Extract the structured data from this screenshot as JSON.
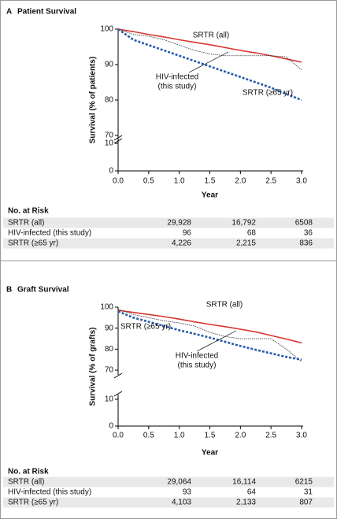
{
  "chart_data": [
    {
      "type": "line",
      "panel": "A",
      "title": "Patient Survival",
      "ylabel": "Survival (% of patients)",
      "xlabel": "Year",
      "x": [
        0,
        0.25,
        0.5,
        0.75,
        1,
        1.25,
        1.5,
        1.75,
        2,
        2.25,
        2.5,
        2.75,
        3
      ],
      "xlim": [
        0,
        3
      ],
      "xticks": [
        {
          "value": 0,
          "label": "0.0"
        },
        {
          "value": 0.5,
          "label": "0.5"
        },
        {
          "value": 1,
          "label": "1.0"
        },
        {
          "value": 1.5,
          "label": "1.5"
        },
        {
          "value": 2,
          "label": "2.0"
        },
        {
          "value": 2.5,
          "label": "2.5"
        },
        {
          "value": 3,
          "label": "3.0"
        }
      ],
      "ylim": [
        0,
        100
      ],
      "axis_break": [
        10,
        70
      ],
      "yticks": [
        0,
        10,
        70,
        80,
        90,
        100
      ],
      "risk_title": "No. at Risk",
      "series": [
        {
          "name": "SRTR (all)",
          "label_lines": [
            "SRTR (all)"
          ],
          "color": "#d8352f",
          "line_style": "solid",
          "values": [
            100,
            99.3,
            98.5,
            97.8,
            97.0,
            96.3,
            95.6,
            94.8,
            94.0,
            93.3,
            92.5,
            91.6,
            90.7
          ],
          "at_risk": [
            29928,
            16792,
            6508
          ],
          "at_risk_labels": [
            "29,928",
            "16,792",
            "6508"
          ]
        },
        {
          "name": "HIV-infected (this study)",
          "label_lines": [
            "HIV-infected",
            "(this study)"
          ],
          "color": "#333333",
          "line_style": "thin",
          "values": [
            100,
            98.5,
            98,
            97,
            95.5,
            94,
            93,
            92.5,
            92.5,
            92.5,
            92.5,
            92.2,
            88.5
          ],
          "at_risk": [
            96,
            68,
            36
          ]
        },
        {
          "name": "SRTR (≥65 yr)",
          "label_lines": [
            "SRTR (≥65 yr)"
          ],
          "color": "#2a5caa",
          "line_style": "dashed",
          "values": [
            100,
            97,
            95.5,
            94,
            92.5,
            91,
            89.5,
            88,
            86.5,
            85,
            83.5,
            81.7,
            80
          ],
          "at_risk": [
            4226,
            2215,
            836
          ],
          "at_risk_labels": [
            "4,226",
            "2,215",
            "836"
          ]
        }
      ]
    },
    {
      "type": "line",
      "panel": "B",
      "title": "Graft Survival",
      "ylabel": "Survival (% of grafts)",
      "xlabel": "Year",
      "x": [
        0,
        0.25,
        0.5,
        0.75,
        1,
        1.25,
        1.5,
        1.75,
        2,
        2.25,
        2.5,
        2.75,
        3
      ],
      "xlim": [
        0,
        3
      ],
      "xticks": [
        {
          "value": 0,
          "label": "0.0"
        },
        {
          "value": 0.5,
          "label": "0.5"
        },
        {
          "value": 1,
          "label": "1.0"
        },
        {
          "value": 1.5,
          "label": "1.5"
        },
        {
          "value": 2,
          "label": "2.0"
        },
        {
          "value": 2.5,
          "label": "2.5"
        },
        {
          "value": 3,
          "label": "3.0"
        }
      ],
      "ylim": [
        0,
        100
      ],
      "axis_break": [
        10,
        70
      ],
      "yticks": [
        0,
        10,
        70,
        80,
        90,
        100
      ],
      "risk_title": "No. at Risk",
      "series": [
        {
          "name": "SRTR (all)",
          "label_lines": [
            "SRTR (all)"
          ],
          "color": "#d8352f",
          "line_style": "solid",
          "values": [
            98.5,
            97.5,
            96.5,
            95.5,
            94.3,
            93,
            91.8,
            90.7,
            89.5,
            88.2,
            86.5,
            84.8,
            83
          ],
          "at_risk": [
            29064,
            16114,
            6215
          ],
          "at_risk_labels": [
            "29,064",
            "16,114",
            "6215"
          ]
        },
        {
          "name": "HIV-infected (this study)",
          "label_lines": [
            "HIV-infected",
            "(this study)"
          ],
          "color": "#333333",
          "line_style": "thin",
          "values": [
            99,
            96.5,
            95,
            93.5,
            92.5,
            91,
            88,
            86,
            85,
            85,
            85,
            80,
            74
          ],
          "at_risk": [
            93,
            64,
            31
          ]
        },
        {
          "name": "SRTR (≥65 yr)",
          "label_lines": [
            "SRTR (≥65 yr)"
          ],
          "color": "#2a5caa",
          "line_style": "dashed",
          "values": [
            98,
            95,
            93,
            91,
            89,
            87.3,
            85.5,
            83.5,
            81.5,
            79.7,
            78,
            76.3,
            75
          ],
          "at_risk": [
            4103,
            2133,
            807
          ],
          "at_risk_labels": [
            "4,103",
            "2,133",
            "807"
          ]
        }
      ]
    }
  ]
}
